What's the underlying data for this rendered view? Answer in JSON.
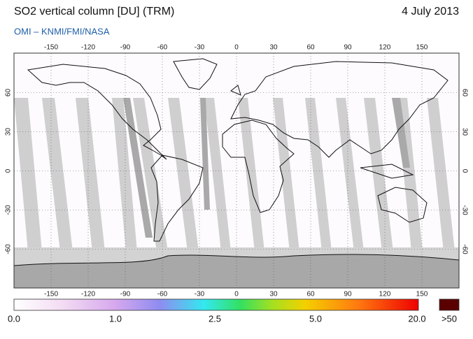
{
  "header": {
    "title": "SO2 vertical column [DU] (TRM)",
    "date": "4 July 2013",
    "subtitle": "OMI  –  KNMI/FMI/NASA"
  },
  "map": {
    "lon_ticks": [
      -150,
      -120,
      -90,
      -60,
      -30,
      0,
      30,
      60,
      90,
      120,
      150
    ],
    "lat_ticks": [
      60,
      30,
      0,
      -30,
      -60
    ]
  },
  "colorbar": {
    "labels": [
      "0.0",
      "1.0",
      "2.5",
      "5.0",
      "20.0",
      ">50"
    ]
  }
}
